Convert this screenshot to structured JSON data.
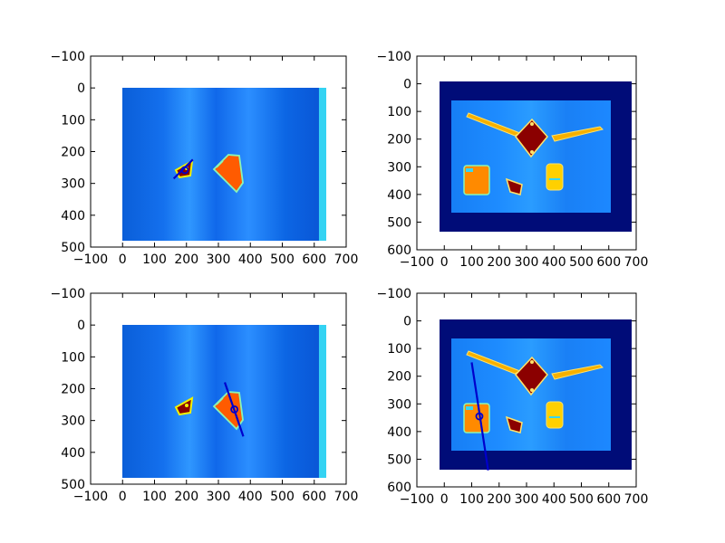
{
  "chart_data": [
    {
      "type": "heatmap",
      "panel": "top-left",
      "image_width": 640,
      "image_height": 480,
      "xlim": [
        -100,
        700
      ],
      "ylim": [
        500,
        -100
      ],
      "xticks": [
        -100,
        0,
        100,
        200,
        300,
        400,
        500,
        600,
        700
      ],
      "yticks": [
        -100,
        0,
        100,
        200,
        300,
        400,
        500
      ],
      "xtick_labels": [
        "−100",
        "0",
        "100",
        "200",
        "300",
        "400",
        "500",
        "600",
        "700"
      ],
      "ytick_labels": [
        "−100",
        "0",
        "100",
        "200",
        "300",
        "400",
        "500"
      ],
      "colormap": "jet",
      "segment": {
        "x": [
          160,
          220
        ],
        "y": [
          285,
          225
        ]
      },
      "marker": {
        "x": 195,
        "y": 258
      },
      "line_color": "#0000cc"
    },
    {
      "type": "heatmap",
      "panel": "top-right",
      "image_width": 680,
      "image_height": 530,
      "xlim": [
        -100,
        700
      ],
      "ylim": [
        600,
        -100
      ],
      "xticks": [
        -100,
        0,
        100,
        200,
        300,
        400,
        500,
        600,
        700
      ],
      "yticks": [
        -100,
        0,
        100,
        200,
        300,
        400,
        500,
        600
      ],
      "xtick_labels": [
        "−100",
        "0",
        "100",
        "200",
        "300",
        "400",
        "500",
        "600",
        "700"
      ],
      "ytick_labels": [
        "−100",
        "0",
        "100",
        "200",
        "300",
        "400",
        "500",
        "600"
      ],
      "colormap": "jet",
      "line_color": "#0000cc"
    },
    {
      "type": "heatmap",
      "panel": "bottom-left",
      "image_width": 640,
      "image_height": 480,
      "xlim": [
        -100,
        700
      ],
      "ylim": [
        500,
        -100
      ],
      "xticks": [
        -100,
        0,
        100,
        200,
        300,
        400,
        500,
        600,
        700
      ],
      "yticks": [
        -100,
        0,
        100,
        200,
        300,
        400,
        500
      ],
      "xtick_labels": [
        "−100",
        "0",
        "100",
        "200",
        "300",
        "400",
        "500",
        "600",
        "700"
      ],
      "ytick_labels": [
        "−100",
        "0",
        "100",
        "200",
        "300",
        "400",
        "500"
      ],
      "colormap": "jet",
      "segment": {
        "x": [
          320,
          378
        ],
        "y": [
          180,
          350
        ]
      },
      "marker": {
        "x": 350,
        "y": 265
      },
      "line_color": "#0000cc"
    },
    {
      "type": "heatmap",
      "panel": "bottom-right",
      "image_width": 680,
      "image_height": 530,
      "xlim": [
        -100,
        700
      ],
      "ylim": [
        600,
        -100
      ],
      "xticks": [
        -100,
        0,
        100,
        200,
        300,
        400,
        500,
        600,
        700
      ],
      "yticks": [
        -100,
        0,
        100,
        200,
        300,
        400,
        500,
        600
      ],
      "xtick_labels": [
        "−100",
        "0",
        "100",
        "200",
        "300",
        "400",
        "500",
        "600",
        "700"
      ],
      "ytick_labels": [
        "−100",
        "0",
        "100",
        "200",
        "300",
        "400",
        "500",
        "600"
      ],
      "colormap": "jet",
      "segment": {
        "x": [
          100,
          160
        ],
        "y": [
          150,
          540
        ]
      },
      "marker": {
        "x": 128,
        "y": 345
      },
      "line_color": "#0000cc"
    }
  ]
}
